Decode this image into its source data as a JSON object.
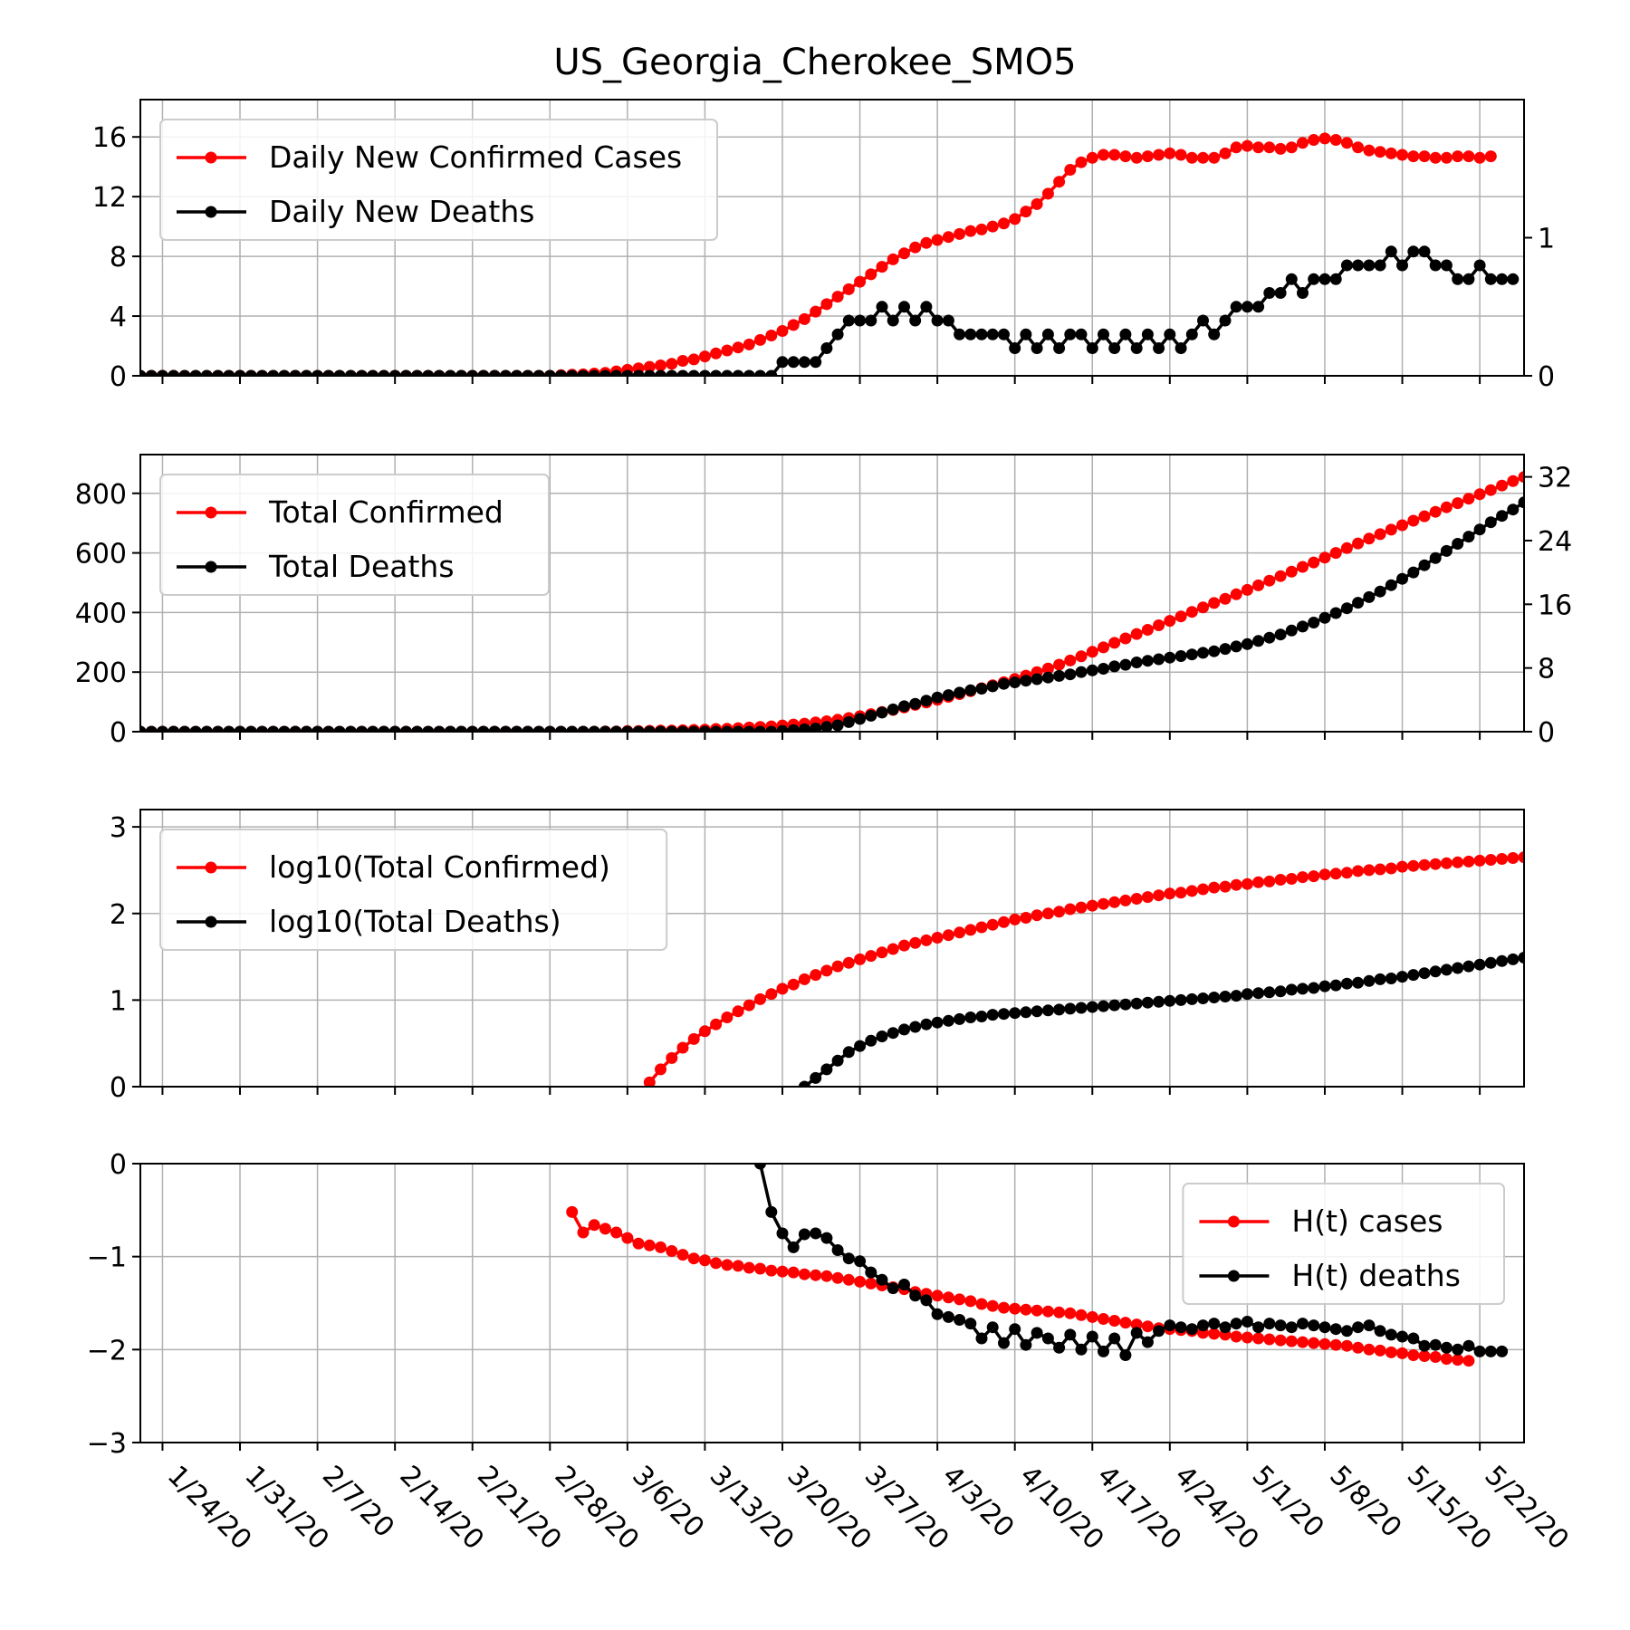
{
  "figure": {
    "title": "US_Georgia_Cherokee_SMO5"
  },
  "colors": {
    "cases": "#ff0000",
    "deaths": "#000000",
    "grid": "#b0b0b0"
  },
  "x_dates": [
    "1/24/20",
    "1/31/20",
    "2/7/20",
    "2/14/20",
    "2/21/20",
    "2/28/20",
    "3/6/20",
    "3/13/20",
    "3/20/20",
    "3/27/20",
    "4/3/20",
    "4/10/20",
    "4/17/20",
    "4/24/20",
    "5/1/20",
    "5/8/20",
    "5/15/20",
    "5/22/20"
  ],
  "chart_data": [
    {
      "type": "line",
      "title": "US_Georgia_Cherokee_SMO5",
      "x_start": "1/22/20",
      "x_end": "5/26/20",
      "ylim_left": [
        0,
        18.5
      ],
      "yticks_left": [
        "0",
        "4",
        "8",
        "12",
        "16"
      ],
      "ylim_right": [
        0,
        2.0
      ],
      "yticks_right": [
        "0",
        "1"
      ],
      "grid": true,
      "legend_position": "upper-left",
      "series": [
        {
          "name": "Daily New Confirmed Cases",
          "axis": "left",
          "start": "1/22/20",
          "values": [
            0,
            0,
            0,
            0,
            0,
            0,
            0,
            0,
            0,
            0,
            0,
            0,
            0,
            0,
            0,
            0,
            0,
            0,
            0,
            0,
            0,
            0,
            0,
            0,
            0,
            0,
            0,
            0,
            0,
            0,
            0,
            0,
            0,
            0,
            0,
            0,
            0,
            0,
            0.05,
            0.08,
            0.1,
            0.15,
            0.2,
            0.3,
            0.4,
            0.5,
            0.6,
            0.7,
            0.8,
            1.0,
            1.1,
            1.3,
            1.5,
            1.7,
            1.9,
            2.1,
            2.4,
            2.7,
            3.0,
            3.4,
            3.8,
            4.3,
            4.8,
            5.3,
            5.8,
            6.3,
            6.8,
            7.3,
            7.8,
            8.2,
            8.6,
            8.9,
            9.1,
            9.3,
            9.5,
            9.7,
            9.8,
            10.0,
            10.2,
            10.5,
            11.0,
            11.5,
            12.2,
            13.0,
            13.8,
            14.3,
            14.6,
            14.8,
            14.8,
            14.7,
            14.6,
            14.7,
            14.8,
            14.9,
            14.8,
            14.6,
            14.6,
            14.6,
            14.9,
            15.3,
            15.4,
            15.3,
            15.3,
            15.2,
            15.3,
            15.6,
            15.8,
            15.9,
            15.8,
            15.6,
            15.3,
            15.1,
            15.0,
            14.9,
            14.8,
            14.7,
            14.7,
            14.6,
            14.6,
            14.7,
            14.7,
            14.6,
            14.7
          ]
        },
        {
          "name": "Daily New Deaths",
          "axis": "right",
          "start": "1/22/20",
          "values": [
            0,
            0,
            0,
            0,
            0,
            0,
            0,
            0,
            0,
            0,
            0,
            0,
            0,
            0,
            0,
            0,
            0,
            0,
            0,
            0,
            0,
            0,
            0,
            0,
            0,
            0,
            0,
            0,
            0,
            0,
            0,
            0,
            0,
            0,
            0,
            0,
            0,
            0,
            0,
            0,
            0,
            0,
            0,
            0,
            0,
            0,
            0,
            0,
            0,
            0,
            0,
            0,
            0,
            0,
            0,
            0,
            0,
            0,
            0.1,
            0.1,
            0.1,
            0.1,
            0.2,
            0.3,
            0.4,
            0.4,
            0.4,
            0.5,
            0.4,
            0.5,
            0.4,
            0.5,
            0.4,
            0.4,
            0.3,
            0.3,
            0.3,
            0.3,
            0.3,
            0.2,
            0.3,
            0.2,
            0.3,
            0.2,
            0.3,
            0.3,
            0.2,
            0.3,
            0.2,
            0.3,
            0.2,
            0.3,
            0.2,
            0.3,
            0.2,
            0.3,
            0.4,
            0.3,
            0.4,
            0.5,
            0.5,
            0.5,
            0.6,
            0.6,
            0.7,
            0.6,
            0.7,
            0.7,
            0.7,
            0.8,
            0.8,
            0.8,
            0.8,
            0.9,
            0.8,
            0.9,
            0.9,
            0.8,
            0.8,
            0.7,
            0.7,
            0.8,
            0.7,
            0.7,
            0.7
          ]
        }
      ]
    },
    {
      "type": "line",
      "x_start": "1/22/20",
      "x_end": "5/26/20",
      "ylim_left": [
        0,
        930
      ],
      "yticks_left": [
        "0",
        "200",
        "400",
        "600",
        "800"
      ],
      "ylim_right": [
        0,
        34.8
      ],
      "yticks_right": [
        "0",
        "8",
        "16",
        "24",
        "32"
      ],
      "grid": true,
      "legend_position": "upper-left",
      "series": [
        {
          "name": "Total Confirmed",
          "axis": "left",
          "start": "1/22/20",
          "values": [
            0,
            0,
            0,
            0,
            0,
            0,
            0,
            0,
            0,
            0,
            0,
            0,
            0,
            0,
            0,
            0,
            0,
            0,
            0,
            0,
            0,
            0,
            0,
            0,
            0,
            0,
            0,
            0,
            0,
            0,
            0,
            0,
            0,
            0,
            0,
            0,
            0,
            0,
            0,
            0,
            0,
            0,
            1,
            1,
            2,
            2,
            3,
            4,
            4,
            5,
            6,
            7,
            9,
            10,
            12,
            14,
            16,
            18,
            21,
            24,
            27,
            31,
            35,
            40,
            46,
            52,
            59,
            66,
            73,
            81,
            90,
            98,
            107,
            117,
            126,
            136,
            146,
            156,
            166,
            177,
            188,
            200,
            212,
            225,
            239,
            253,
            268,
            283,
            298,
            313,
            328,
            342,
            357,
            372,
            387,
            402,
            417,
            432,
            446,
            461,
            476,
            491,
            507,
            522,
            537,
            553,
            568,
            584,
            600,
            616,
            632,
            648,
            663,
            678,
            693,
            708,
            723,
            738,
            753,
            767,
            782,
            797,
            811,
            826,
            841,
            855
          ]
        },
        {
          "name": "Total Deaths",
          "axis": "right",
          "start": "1/22/20",
          "values": [
            0,
            0,
            0,
            0,
            0,
            0,
            0,
            0,
            0,
            0,
            0,
            0,
            0,
            0,
            0,
            0,
            0,
            0,
            0,
            0,
            0,
            0,
            0,
            0,
            0,
            0,
            0,
            0,
            0,
            0,
            0,
            0,
            0,
            0,
            0,
            0,
            0,
            0,
            0,
            0,
            0,
            0,
            0,
            0,
            0,
            0,
            0,
            0,
            0,
            0,
            0,
            0,
            0,
            0,
            0,
            0,
            0,
            0,
            0.1,
            0.2,
            0.3,
            0.4,
            0.6,
            0.8,
            1.2,
            1.6,
            2.0,
            2.4,
            2.8,
            3.2,
            3.5,
            3.9,
            4.3,
            4.6,
            4.9,
            5.2,
            5.4,
            5.7,
            6.0,
            6.2,
            6.4,
            6.6,
            6.8,
            7.0,
            7.2,
            7.5,
            7.7,
            7.9,
            8.2,
            8.4,
            8.7,
            8.9,
            9.1,
            9.3,
            9.5,
            9.7,
            9.9,
            10.1,
            10.4,
            10.7,
            11.0,
            11.4,
            11.8,
            12.2,
            12.7,
            13.2,
            13.7,
            14.3,
            14.9,
            15.5,
            16.2,
            16.9,
            17.6,
            18.4,
            19.2,
            20.0,
            20.9,
            21.8,
            22.7,
            23.6,
            24.5,
            25.4,
            26.3,
            27.1,
            27.9,
            28.8,
            29.6,
            30.4,
            31.1
          ]
        }
      ]
    },
    {
      "type": "line",
      "x_start": "1/22/20",
      "x_end": "5/26/20",
      "ylim_left": [
        0,
        3.2
      ],
      "yticks_left": [
        "0",
        "1",
        "2",
        "3"
      ],
      "grid": true,
      "legend_position": "upper-left",
      "series": [
        {
          "name": "log10(Total Confirmed)",
          "axis": "left",
          "start": "3/8/20",
          "values": [
            0.05,
            0.2,
            0.33,
            0.45,
            0.55,
            0.64,
            0.72,
            0.8,
            0.87,
            0.94,
            1.01,
            1.07,
            1.13,
            1.18,
            1.24,
            1.29,
            1.34,
            1.39,
            1.43,
            1.47,
            1.51,
            1.55,
            1.59,
            1.63,
            1.66,
            1.69,
            1.72,
            1.75,
            1.78,
            1.81,
            1.84,
            1.87,
            1.9,
            1.93,
            1.95,
            1.98,
            2.0,
            2.02,
            2.05,
            2.07,
            2.09,
            2.11,
            2.13,
            2.15,
            2.17,
            2.19,
            2.21,
            2.23,
            2.24,
            2.26,
            2.28,
            2.3,
            2.31,
            2.33,
            2.34,
            2.36,
            2.37,
            2.39,
            2.4,
            2.42,
            2.43,
            2.45,
            2.46,
            2.47,
            2.49,
            2.5,
            2.51,
            2.52,
            2.54,
            2.55,
            2.56,
            2.57,
            2.58,
            2.59,
            2.6,
            2.61,
            2.62,
            2.63,
            2.64,
            2.65,
            2.66,
            2.67,
            2.68,
            2.69,
            2.7,
            2.71,
            2.72,
            2.73,
            2.74,
            2.75,
            2.76,
            2.77,
            2.78,
            2.79,
            2.8,
            2.81,
            2.82,
            2.83,
            2.84,
            2.85,
            2.86,
            2.87,
            2.88,
            2.89,
            2.9,
            2.91,
            2.92,
            2.93
          ]
        },
        {
          "name": "log10(Total Deaths)",
          "axis": "left",
          "start": "3/22/20",
          "values": [
            0.0,
            0.1,
            0.2,
            0.3,
            0.4,
            0.47,
            0.53,
            0.58,
            0.62,
            0.66,
            0.69,
            0.72,
            0.74,
            0.76,
            0.78,
            0.8,
            0.81,
            0.83,
            0.84,
            0.85,
            0.86,
            0.87,
            0.88,
            0.89,
            0.9,
            0.91,
            0.92,
            0.93,
            0.94,
            0.95,
            0.96,
            0.97,
            0.98,
            0.99,
            1.0,
            1.01,
            1.02,
            1.03,
            1.04,
            1.05,
            1.07,
            1.08,
            1.09,
            1.1,
            1.12,
            1.13,
            1.14,
            1.16,
            1.17,
            1.19,
            1.2,
            1.22,
            1.24,
            1.25,
            1.27,
            1.29,
            1.31,
            1.33,
            1.35,
            1.37,
            1.39,
            1.41,
            1.43,
            1.45,
            1.47,
            1.49
          ]
        }
      ]
    },
    {
      "type": "line",
      "x_start": "1/22/20",
      "x_end": "5/26/20",
      "ylim_left": [
        -3,
        0
      ],
      "yticks_left": [
        "0",
        "−1",
        "−2",
        "−3"
      ],
      "grid": true,
      "legend_position": "upper-right",
      "series": [
        {
          "name": "H(t) cases",
          "axis": "left",
          "start": "3/1/20",
          "values": [
            -0.52,
            -0.74,
            -0.66,
            -0.7,
            -0.74,
            -0.8,
            -0.86,
            -0.88,
            -0.9,
            -0.94,
            -0.98,
            -1.02,
            -1.04,
            -1.07,
            -1.09,
            -1.1,
            -1.12,
            -1.13,
            -1.15,
            -1.16,
            -1.17,
            -1.19,
            -1.2,
            -1.21,
            -1.23,
            -1.25,
            -1.27,
            -1.29,
            -1.31,
            -1.33,
            -1.35,
            -1.38,
            -1.4,
            -1.42,
            -1.44,
            -1.46,
            -1.48,
            -1.51,
            -1.53,
            -1.55,
            -1.56,
            -1.57,
            -1.58,
            -1.59,
            -1.6,
            -1.61,
            -1.63,
            -1.65,
            -1.67,
            -1.69,
            -1.71,
            -1.73,
            -1.75,
            -1.77,
            -1.78,
            -1.79,
            -1.8,
            -1.82,
            -1.83,
            -1.84,
            -1.86,
            -1.87,
            -1.88,
            -1.89,
            -1.9,
            -1.91,
            -1.92,
            -1.93,
            -1.94,
            -1.95,
            -1.96,
            -1.98,
            -2.0,
            -2.01,
            -2.03,
            -2.04,
            -2.06,
            -2.07,
            -2.08,
            -2.1,
            -2.11,
            -2.12
          ]
        },
        {
          "name": "H(t) deaths",
          "axis": "left",
          "start": "3/18/20",
          "values": [
            0.0,
            -0.52,
            -0.75,
            -0.9,
            -0.76,
            -0.75,
            -0.8,
            -0.93,
            -1.02,
            -1.05,
            -1.17,
            -1.25,
            -1.34,
            -1.3,
            -1.42,
            -1.47,
            -1.62,
            -1.65,
            -1.68,
            -1.72,
            -1.88,
            -1.76,
            -1.93,
            -1.78,
            -1.95,
            -1.82,
            -1.88,
            -1.98,
            -1.84,
            -2.0,
            -1.86,
            -2.02,
            -1.88,
            -2.06,
            -1.82,
            -1.92,
            -1.8,
            -1.74,
            -1.76,
            -1.78,
            -1.74,
            -1.72,
            -1.76,
            -1.72,
            -1.7,
            -1.76,
            -1.72,
            -1.74,
            -1.76,
            -1.72,
            -1.74,
            -1.76,
            -1.78,
            -1.8,
            -1.76,
            -1.74,
            -1.8,
            -1.84,
            -1.86,
            -1.88,
            -1.96,
            -1.95,
            -1.98,
            -2.0,
            -1.96,
            -2.02,
            -2.02,
            -2.02
          ]
        }
      ]
    }
  ]
}
